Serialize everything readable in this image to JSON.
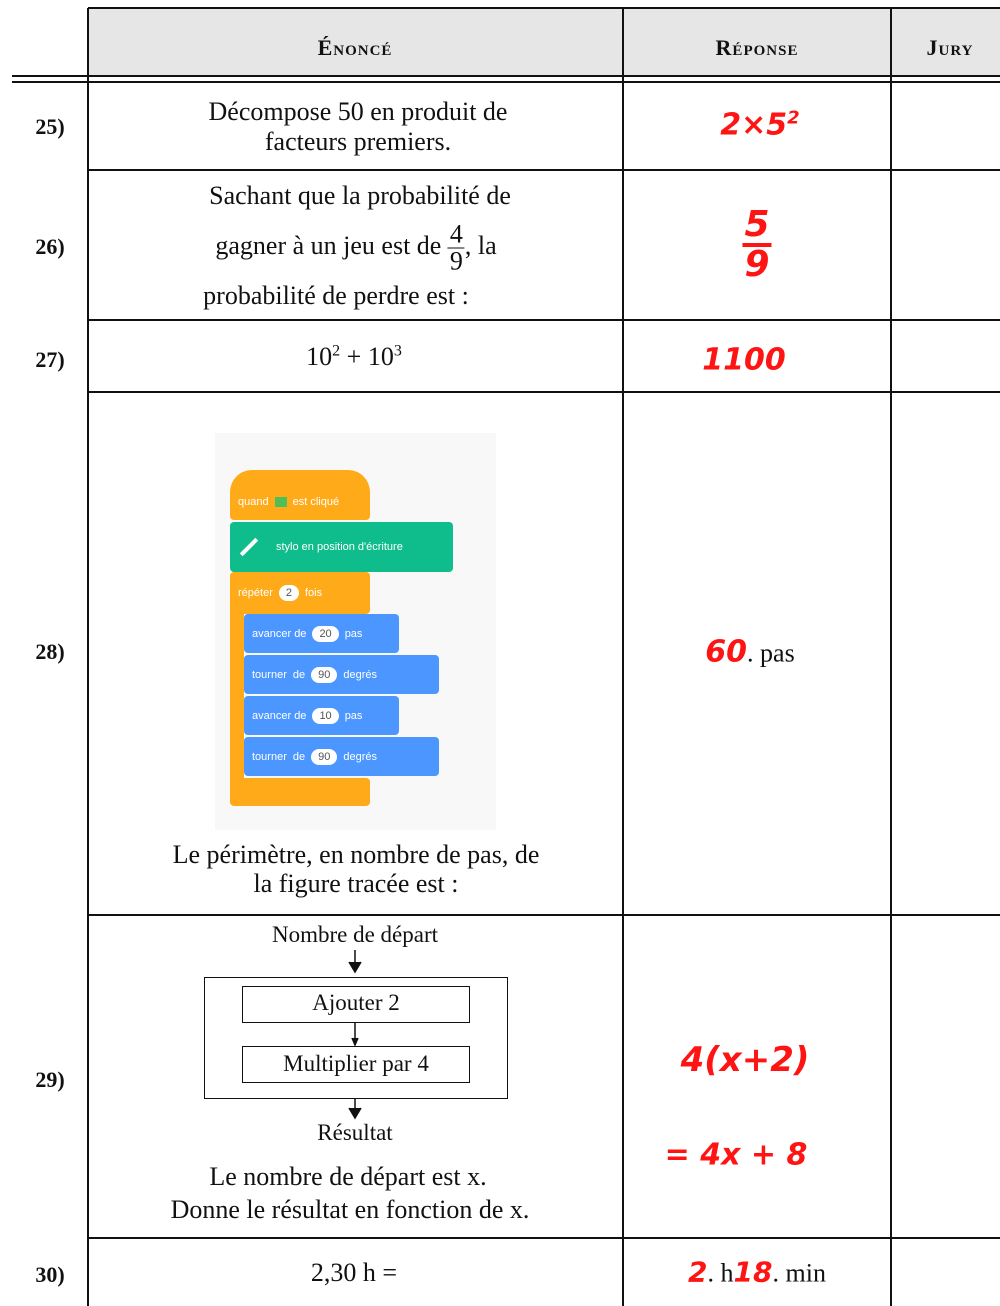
{
  "header": {
    "enonce": "Énoncé",
    "reponse": "Réponse",
    "jury": "Jury"
  },
  "rows": [
    {
      "number": "25)",
      "statement": [
        "Décompose 50 en produit de",
        "facteurs premiers."
      ],
      "answer": {
        "base": "2×5",
        "exponent": "2"
      }
    },
    {
      "number": "26)",
      "statement": {
        "line1": "Sachant que la probabilité de",
        "line2_start": "gagner à un jeu est de",
        "fraction": [
          "4",
          "9"
        ],
        "line2_end": ", la",
        "line3": "probabilité de perdre est :"
      },
      "answer": {
        "numerator": "5",
        "denominator": "9"
      }
    },
    {
      "number": "27)",
      "statement": {
        "base1": "10",
        "exp1": "2",
        "operator": "+",
        "base2": "10",
        "exp2": "3"
      },
      "answer": "1100"
    },
    {
      "number": "28)",
      "program": {
        "hat": [
          "quand",
          "est cliqué"
        ],
        "pen": "stylo en position d'écriture",
        "repeat": [
          "répéter",
          "2",
          "fois"
        ],
        "blocks": [
          [
            "avancer de",
            "20",
            "pas"
          ],
          [
            "tourner",
            "de",
            "90",
            "degrés"
          ],
          [
            "avancer de",
            "10",
            "pas"
          ],
          [
            "tourner",
            "de",
            "90",
            "degrés"
          ]
        ]
      },
      "statement": [
        "Le périmètre, en nombre de pas, de",
        "la figure tracée est :"
      ],
      "answer": {
        "handwritten": "60",
        "printed": ". pas"
      }
    },
    {
      "number": "29)",
      "diagram": {
        "start": "Nombre de départ",
        "steps": [
          "Ajouter 2",
          "Multiplier par 4"
        ],
        "end": "Résultat"
      },
      "statement": [
        "Le nombre de départ est x.",
        "Donne le résultat en fonction de x."
      ],
      "answer": [
        "4(x+2)",
        "= 4x + 8"
      ]
    },
    {
      "number": "30)",
      "statement": "2,30 h =",
      "answer": {
        "hours": "2",
        "hours_unit": ". h",
        "minutes": "18",
        "minutes_unit": ". min"
      }
    }
  ]
}
